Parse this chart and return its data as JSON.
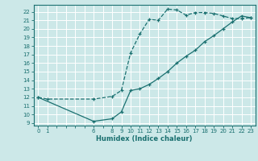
{
  "xlabel": "Humidex (Indice chaleur)",
  "bg_color": "#cce8e8",
  "grid_color": "#ffffff",
  "line_color": "#1a7070",
  "xlim": [
    -0.5,
    23.5
  ],
  "ylim": [
    8.7,
    22.8
  ],
  "xticks_all": [
    0,
    1,
    2,
    3,
    4,
    5,
    6,
    7,
    8,
    9,
    10,
    11,
    12,
    13,
    14,
    15,
    16,
    17,
    18,
    19,
    20,
    21,
    22,
    23
  ],
  "xtick_labels_show": [
    0,
    1,
    6,
    8,
    9,
    10,
    11,
    12,
    13,
    14,
    15,
    16,
    17,
    18,
    19,
    20,
    21,
    22,
    23
  ],
  "yticks": [
    9,
    10,
    11,
    12,
    13,
    14,
    15,
    16,
    17,
    18,
    19,
    20,
    21,
    22
  ],
  "curve1_x": [
    0,
    1,
    6,
    8,
    9,
    10,
    11,
    12,
    13,
    14,
    15,
    16,
    17,
    18,
    19,
    20,
    21,
    22,
    23
  ],
  "curve1_y": [
    12.0,
    11.8,
    11.8,
    12.1,
    12.8,
    17.2,
    19.4,
    21.1,
    21.0,
    22.3,
    22.2,
    21.6,
    21.9,
    21.9,
    21.8,
    21.5,
    21.2,
    21.2,
    21.3
  ],
  "curve2_x": [
    0,
    6,
    8,
    9,
    10,
    11,
    12,
    13,
    14,
    15,
    16,
    17,
    18,
    19,
    20,
    21,
    22,
    23
  ],
  "curve2_y": [
    12.0,
    9.2,
    9.5,
    10.3,
    12.8,
    13.0,
    13.5,
    14.2,
    15.0,
    16.0,
    16.8,
    17.5,
    18.5,
    19.2,
    20.0,
    20.8,
    21.5,
    21.3
  ]
}
